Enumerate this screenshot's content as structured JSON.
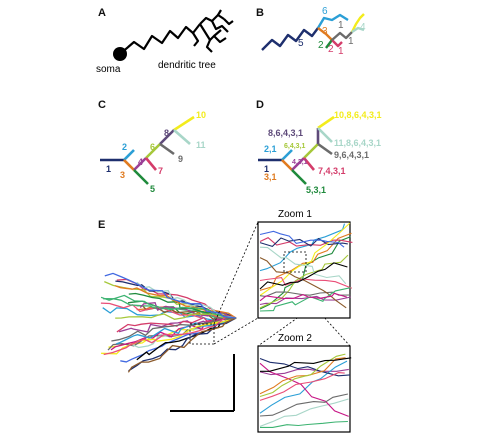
{
  "panel_labels": {
    "a": "A",
    "b": "B",
    "c": "C",
    "d": "D",
    "e": "E"
  },
  "panel_a": {
    "soma": "soma",
    "tree": "dendritic tree"
  },
  "panel_b": {
    "n1": "1",
    "n2": "2",
    "n3": "3",
    "n4": "4",
    "n5": "5",
    "n6": "6",
    "n7": "1",
    "n8": "2",
    "n9": "1"
  },
  "panel_c": {
    "n1": "1",
    "n2": "2",
    "n3": "3",
    "n4": "4",
    "n5": "5",
    "n6": "6",
    "n7": "7",
    "n8": "8",
    "n9": "9",
    "n10": "10",
    "n11": "11"
  },
  "panel_d": {
    "n1": "1",
    "n2": "2,1",
    "n3": "3,1",
    "n4": "4,3,1",
    "n5": "5,3,1",
    "n6": "6,4,3,1",
    "n7": "7,4,3,1",
    "n8": "8,6,4,3,1",
    "n9": "9,6,4,3,1",
    "n10": "10,8,6,4,3,1",
    "n11": "11,8,6,4,3,1"
  },
  "panel_e": {
    "zoom1": "Zoom 1",
    "zoom2": "Zoom 2"
  },
  "colors": {
    "s1": "#1e2f6e",
    "s2": "#2b9fd6",
    "s3": "#e07b20",
    "s4": "#9b3f96",
    "s5": "#1f8a3c",
    "s6": "#a6c83a",
    "s7": "#d43c6a",
    "s8": "#5e4a7a",
    "s9": "#6b6b6b",
    "s10": "#f3ec1c",
    "s11": "#a8d6c8"
  }
}
